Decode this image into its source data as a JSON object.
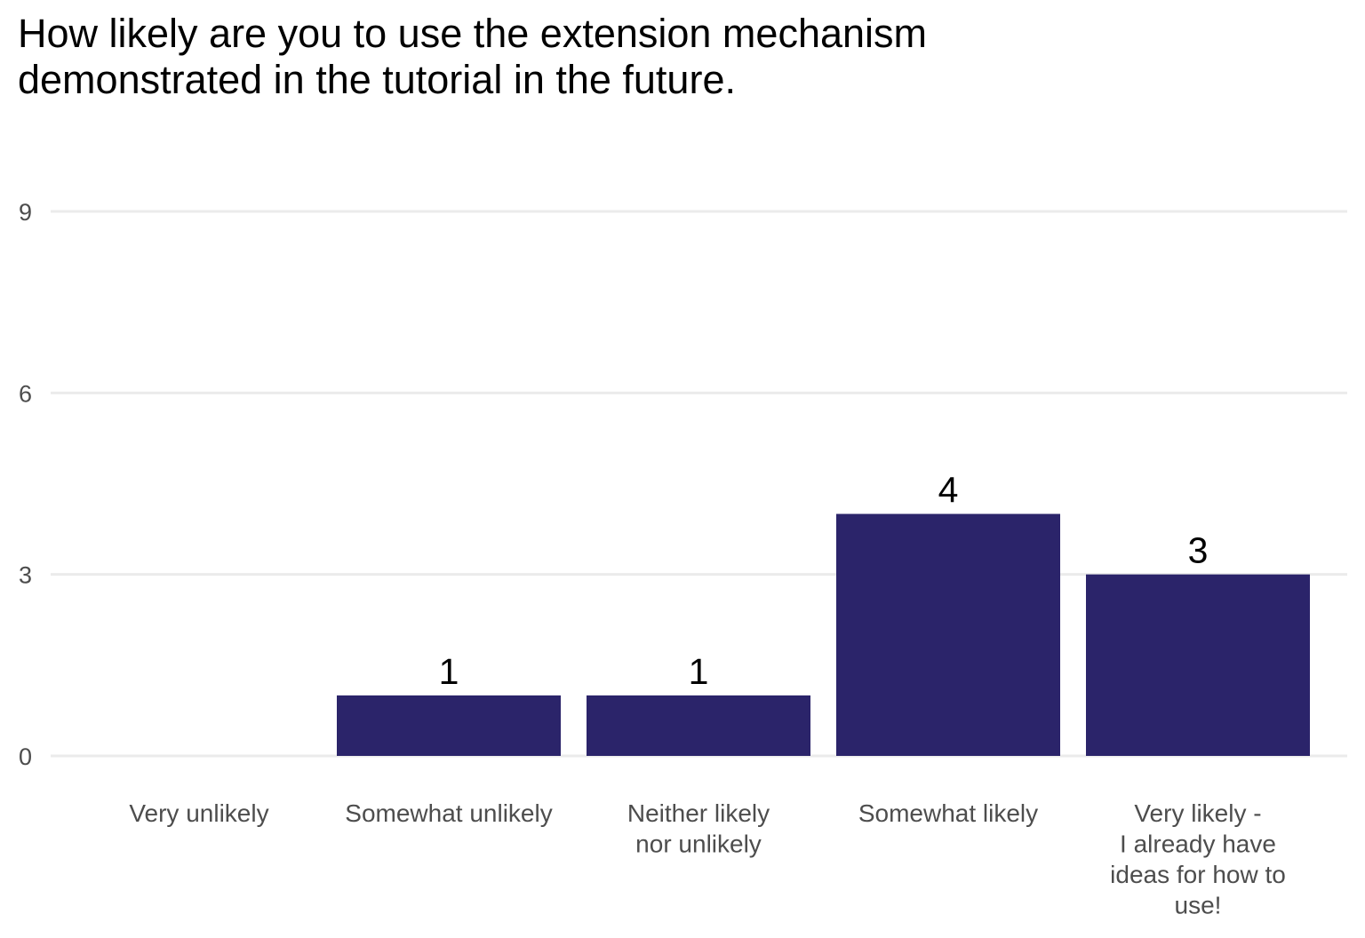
{
  "chart_data": {
    "type": "bar",
    "title_lines": [
      "How likely are you to use the extension mechanism",
      "demonstrated in the tutorial in the future."
    ],
    "categories": [
      {
        "lines": [
          "Very unlikely"
        ]
      },
      {
        "lines": [
          "Somewhat unlikely"
        ]
      },
      {
        "lines": [
          "Neither likely",
          "nor unlikely"
        ]
      },
      {
        "lines": [
          "Somewhat likely"
        ]
      },
      {
        "lines": [
          "Very likely -",
          "I already have",
          "ideas for how to",
          "use!"
        ]
      }
    ],
    "values": [
      0,
      1,
      1,
      4,
      3
    ],
    "data_labels": [
      "",
      "1",
      "1",
      "4",
      "3"
    ],
    "y_ticks": [
      0,
      3,
      6,
      9
    ],
    "ylim": [
      0,
      9
    ],
    "xlabel": "",
    "ylabel": "",
    "grid": "horizontal major gridlines",
    "legend": "none",
    "bar_color": "#2b246a",
    "gridline_color": "#ebebeb"
  }
}
